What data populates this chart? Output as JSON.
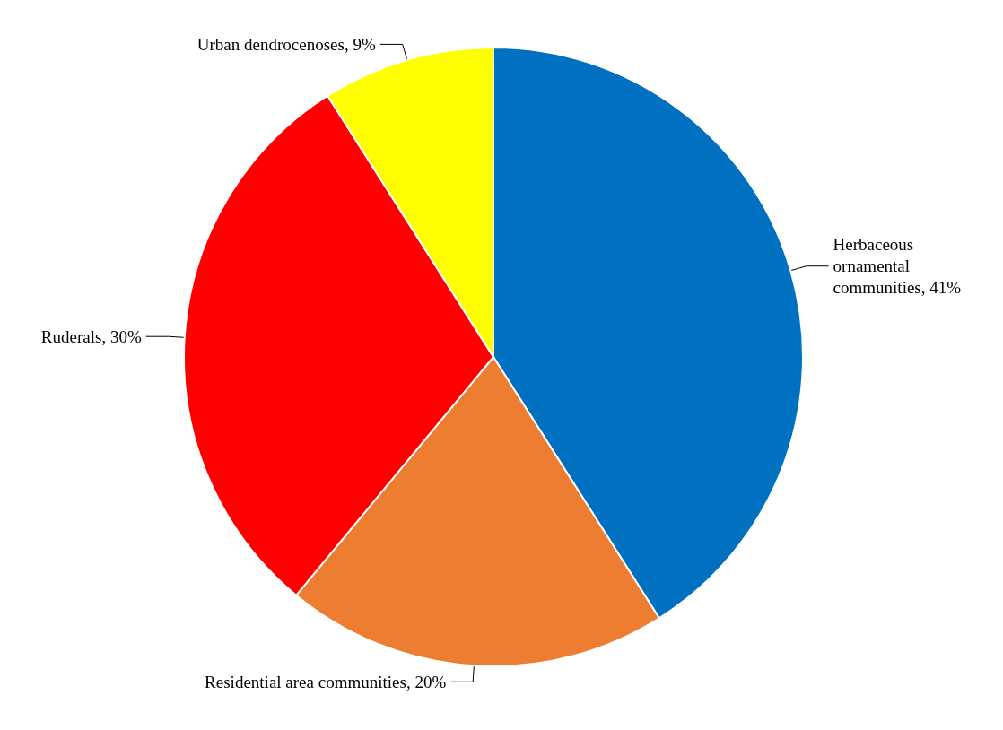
{
  "chart_data": {
    "type": "pie",
    "categories": [
      "Herbaceous ornamental communities",
      "Residential area communities",
      "Ruderals",
      "Urban dendrocenoses"
    ],
    "values": [
      41,
      20,
      30,
      9
    ],
    "value_labels": [
      "41%",
      "20%",
      "30%",
      "9%"
    ],
    "colors": [
      "#0070c0",
      "#ed7d31",
      "#ff0000",
      "#ffff00"
    ],
    "legend": false
  }
}
